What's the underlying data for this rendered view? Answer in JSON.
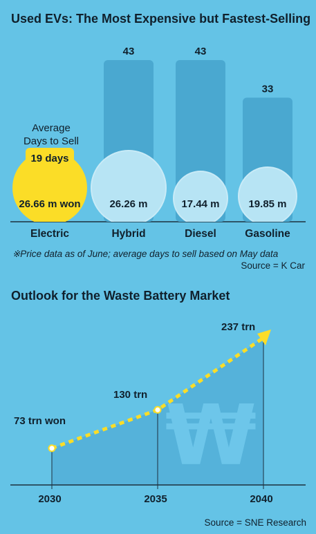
{
  "used_ev_chart": {
    "title": "Used EVs: The Most Expensive but Fastest-Selling",
    "avg_days_label": "Average Days to Sell",
    "avg_days_label_lines": [
      "Average",
      "Days to Sell"
    ],
    "highlight_badge": "19 days",
    "footnote": "※Price data as of June; average days to sell based on May data",
    "source": "Source = K Car"
  },
  "battery_chart": {
    "title": "Outlook for the Waste Battery Market",
    "source": "Source = SNE Research",
    "currency_symbol": "₩"
  },
  "chart_data": [
    {
      "type": "bar",
      "title": "Used EVs: The Most Expensive but Fastest-Selling",
      "categories": [
        "Electric",
        "Hybrid",
        "Diesel",
        "Gasoline"
      ],
      "series": [
        {
          "name": "Average Days to Sell",
          "values": [
            19,
            43,
            43,
            33
          ]
        },
        {
          "values": [
            26.66,
            26.26,
            17.44,
            19.85
          ]
        }
      ],
      "bar_labels": [
        "",
        "43",
        "43",
        "33"
      ],
      "price_labels": [
        "26.66 m won",
        "26.26 m",
        "17.44 m",
        "19.85 m"
      ],
      "ylim": [
        0,
        50
      ],
      "grid": false,
      "colors": {
        "bar": "#4aa8d0",
        "bubble": "#b7e4f4",
        "highlight": "#fbdd27"
      }
    },
    {
      "type": "line",
      "title": "Outlook for the Waste Battery Market",
      "x": [
        2030,
        2035,
        2040
      ],
      "y": [
        73,
        130,
        237
      ],
      "point_labels": [
        "73 trn won",
        "130 trn",
        "237 trn"
      ],
      "ylim": [
        0,
        240
      ],
      "grid": false,
      "colors": {
        "line": "#fbdd27",
        "area": "#55b2da"
      }
    }
  ]
}
